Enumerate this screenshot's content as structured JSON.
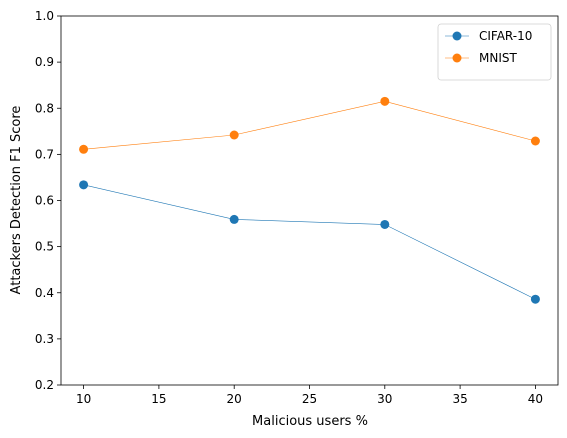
{
  "chart_data": {
    "type": "line",
    "title": "",
    "xlabel": "Malicious users %",
    "ylabel": "Attackers Detection F1 Score",
    "x": [
      10,
      20,
      30,
      40
    ],
    "xlim": [
      8.5,
      41.5
    ],
    "ylim": [
      0.2,
      1.0
    ],
    "xticks": [
      10,
      15,
      20,
      25,
      30,
      35,
      40
    ],
    "yticks": [
      0.2,
      0.3,
      0.4,
      0.5,
      0.6,
      0.7,
      0.8,
      0.9,
      1.0
    ],
    "grid": false,
    "legend_position": "top-right",
    "series": [
      {
        "name": "CIFAR-10",
        "color": "#1f77b4",
        "values": [
          0.634,
          0.559,
          0.548,
          0.386
        ]
      },
      {
        "name": "MNIST",
        "color": "#ff7f0e",
        "values": [
          0.711,
          0.742,
          0.815,
          0.729
        ]
      }
    ]
  }
}
